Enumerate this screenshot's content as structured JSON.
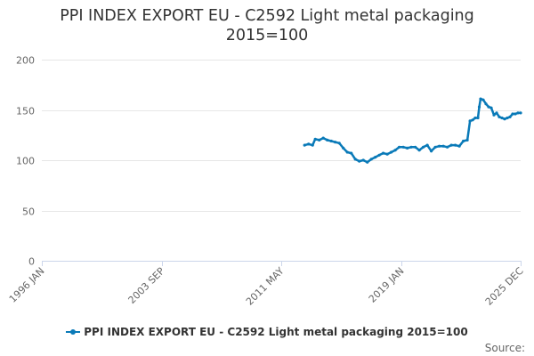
{
  "chart_data": {
    "type": "line",
    "title": "PPI INDEX EXPORT EU - C2592 Light metal packaging",
    "subtitle": "2015=100",
    "xlabel": "",
    "ylabel": "",
    "ylim": [
      0,
      200
    ],
    "yticks": [
      0,
      50,
      100,
      150,
      200
    ],
    "xlim": [
      "1996-01",
      "2025-12"
    ],
    "xticks": [
      "1996 JAN",
      "2003 SEP",
      "2011 MAY",
      "2019 JAN",
      "2025 DEC"
    ],
    "grid": true,
    "legend_position": "bottom",
    "series": [
      {
        "name": "PPI INDEX EXPORT EU - C2592 Light metal packaging 2015=100",
        "color": "#0a7ab8",
        "points": [
          [
            "2012-06",
            115
          ],
          [
            "2012-09",
            116
          ],
          [
            "2012-12",
            115
          ],
          [
            "2013-02",
            121
          ],
          [
            "2013-05",
            120
          ],
          [
            "2013-08",
            122
          ],
          [
            "2013-11",
            120
          ],
          [
            "2014-02",
            119
          ],
          [
            "2014-05",
            118
          ],
          [
            "2014-08",
            117
          ],
          [
            "2014-11",
            112
          ],
          [
            "2015-02",
            108
          ],
          [
            "2015-05",
            107
          ],
          [
            "2015-08",
            101
          ],
          [
            "2015-11",
            99
          ],
          [
            "2016-02",
            100
          ],
          [
            "2016-05",
            98
          ],
          [
            "2016-08",
            101
          ],
          [
            "2016-11",
            103
          ],
          [
            "2017-02",
            105
          ],
          [
            "2017-05",
            107
          ],
          [
            "2017-08",
            106
          ],
          [
            "2017-11",
            108
          ],
          [
            "2018-02",
            110
          ],
          [
            "2018-05",
            113
          ],
          [
            "2018-08",
            113
          ],
          [
            "2018-11",
            112
          ],
          [
            "2019-02",
            113
          ],
          [
            "2019-05",
            113
          ],
          [
            "2019-08",
            110
          ],
          [
            "2019-11",
            113
          ],
          [
            "2020-02",
            115
          ],
          [
            "2020-05",
            109
          ],
          [
            "2020-08",
            113
          ],
          [
            "2020-11",
            114
          ],
          [
            "2021-02",
            114
          ],
          [
            "2021-05",
            113
          ],
          [
            "2021-08",
            115
          ],
          [
            "2021-11",
            115
          ],
          [
            "2022-02",
            114
          ],
          [
            "2022-05",
            119
          ],
          [
            "2022-08",
            120
          ],
          [
            "2022-10",
            139
          ],
          [
            "2022-12",
            140
          ],
          [
            "2023-02",
            142
          ],
          [
            "2023-04",
            142
          ],
          [
            "2023-05",
            153
          ],
          [
            "2023-06",
            161
          ],
          [
            "2023-08",
            160
          ],
          [
            "2023-10",
            156
          ],
          [
            "2023-12",
            153
          ],
          [
            "2024-02",
            152
          ],
          [
            "2024-04",
            145
          ],
          [
            "2024-06",
            147
          ],
          [
            "2024-08",
            143
          ],
          [
            "2024-10",
            142
          ],
          [
            "2024-12",
            141
          ],
          [
            "2025-02",
            142
          ],
          [
            "2025-04",
            143
          ],
          [
            "2025-06",
            146
          ],
          [
            "2025-08",
            146
          ],
          [
            "2025-10",
            147
          ],
          [
            "2025-12",
            147
          ]
        ]
      }
    ]
  },
  "credits": "Source:"
}
